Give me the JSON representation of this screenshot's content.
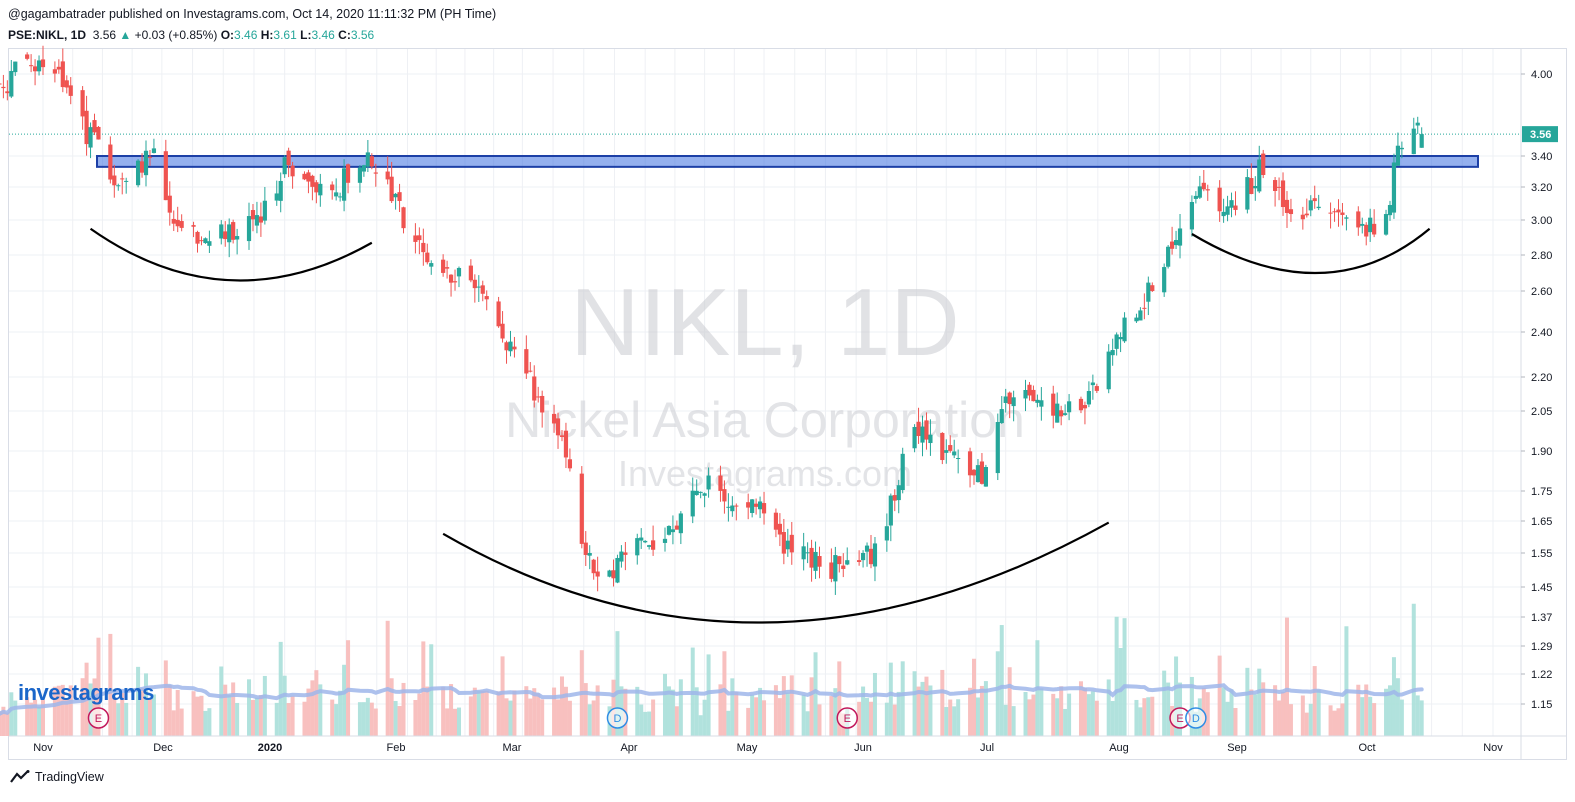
{
  "header": {
    "published": "@gagambatrader published on Investagrams.com, Oct 14, 2020 11:11:32 PM (PH Time)",
    "symbol": "PSE:NIKL, 1D",
    "last": "3.56",
    "change": "+0.03 (+0.85%)",
    "o_label": "O:",
    "o_value": "3.46",
    "h_label": "H:",
    "h_value": "3.61",
    "l_label": "L:",
    "l_value": "3.46",
    "c_label": "C:",
    "c_value": "3.56"
  },
  "watermark": {
    "symbol": "NIKL, 1D",
    "company": "Nickel Asia Corporation",
    "site": "Investagrams.com"
  },
  "logo_text": "investagrams",
  "footer_text": "TradingView",
  "colors": {
    "up": "#26a69a",
    "down": "#ef5350",
    "up_volume": "#a8dfd9",
    "down_volume": "#f7b9b8",
    "volume_ma": "#9fb6ea",
    "zone": "#3d6fe0",
    "price_line": "#26a69a"
  },
  "chart_data": {
    "type": "candlestick",
    "price_axis_ticks": [
      "4.00",
      "3.40",
      "3.20",
      "3.00",
      "2.80",
      "2.60",
      "2.40",
      "2.20",
      "2.05",
      "1.90",
      "1.75",
      "1.65",
      "1.55",
      "1.45",
      "1.37",
      "1.29",
      "1.22",
      "1.15"
    ],
    "price_axis_tick_values": [
      4.0,
      3.4,
      3.2,
      3.0,
      2.8,
      2.6,
      2.4,
      2.2,
      2.05,
      1.9,
      1.75,
      1.65,
      1.55,
      1.45,
      1.37,
      1.29,
      1.22,
      1.15
    ],
    "last_price_label": "3.56",
    "last_price": 3.56,
    "time_axis_labels": [
      "Nov",
      "Dec",
      "2020",
      "Feb",
      "Mar",
      "Apr",
      "May",
      "Jun",
      "Jul",
      "Aug",
      "Sep",
      "Oct",
      "Nov"
    ],
    "resistance_zone": [
      3.33,
      3.4
    ],
    "event_markers": [
      {
        "date": "2019-11-15",
        "label": "E",
        "kind": "earnings"
      },
      {
        "date": "2020-03-25",
        "label": "D",
        "kind": "dividend"
      },
      {
        "date": "2020-05-22",
        "label": "E",
        "kind": "earnings"
      },
      {
        "date": "2020-08-14",
        "label": "E",
        "kind": "earnings"
      },
      {
        "date": "2020-08-18",
        "label": "D",
        "kind": "dividend"
      }
    ],
    "anchors": [
      [
        "2019-10-21",
        3.92
      ],
      [
        "2019-10-28",
        4.05
      ],
      [
        "2019-11-04",
        4.02
      ],
      [
        "2019-11-11",
        3.6
      ],
      [
        "2019-11-15",
        3.5
      ],
      [
        "2019-11-18",
        3.22
      ],
      [
        "2019-11-25",
        3.32
      ],
      [
        "2019-11-29",
        3.42
      ],
      [
        "2019-12-04",
        2.98
      ],
      [
        "2019-12-10",
        2.92
      ],
      [
        "2019-12-20",
        2.92
      ],
      [
        "2019-12-27",
        3.05
      ],
      [
        "2020-01-02",
        3.38
      ],
      [
        "2020-01-08",
        3.15
      ],
      [
        "2020-01-15",
        3.22
      ],
      [
        "2020-01-20",
        3.4
      ],
      [
        "2020-01-27",
        3.2
      ],
      [
        "2020-02-03",
        2.85
      ],
      [
        "2020-02-12",
        2.68
      ],
      [
        "2020-02-20",
        2.62
      ],
      [
        "2020-02-27",
        2.3
      ],
      [
        "2020-03-05",
        2.12
      ],
      [
        "2020-03-10",
        2.0
      ],
      [
        "2020-03-13",
        1.8
      ],
      [
        "2020-03-17",
        1.55
      ],
      [
        "2020-03-23",
        1.47
      ],
      [
        "2020-03-27",
        1.58
      ],
      [
        "2020-04-08",
        1.6
      ],
      [
        "2020-04-16",
        1.78
      ],
      [
        "2020-04-24",
        1.68
      ],
      [
        "2020-04-30",
        1.7
      ],
      [
        "2020-05-08",
        1.55
      ],
      [
        "2020-05-15",
        1.52
      ],
      [
        "2020-05-22",
        1.5
      ],
      [
        "2020-05-29",
        1.55
      ],
      [
        "2020-06-03",
        1.75
      ],
      [
        "2020-06-08",
        2.02
      ],
      [
        "2020-06-17",
        1.88
      ],
      [
        "2020-06-25",
        1.8
      ],
      [
        "2020-06-30",
        2.05
      ],
      [
        "2020-07-06",
        2.15
      ],
      [
        "2020-07-15",
        2.05
      ],
      [
        "2020-07-22",
        2.1
      ],
      [
        "2020-07-29",
        2.35
      ],
      [
        "2020-08-05",
        2.58
      ],
      [
        "2020-08-10",
        2.78
      ],
      [
        "2020-08-14",
        3.0
      ],
      [
        "2020-08-20",
        3.18
      ],
      [
        "2020-08-26",
        3.05
      ],
      [
        "2020-09-03",
        3.3
      ],
      [
        "2020-09-10",
        3.08
      ],
      [
        "2020-09-21",
        3.05
      ],
      [
        "2020-09-30",
        2.95
      ],
      [
        "2020-10-05",
        3.05
      ],
      [
        "2020-10-08",
        3.4
      ],
      [
        "2020-10-12",
        3.68
      ],
      [
        "2020-10-14",
        3.56
      ]
    ],
    "pattern_curves": [
      {
        "name": "left-shoulder",
        "from": [
          "2019-11-13",
          2.95
        ],
        "bottom": [
          "2019-12-18",
          2.66
        ],
        "to": [
          "2020-01-23",
          2.87
        ]
      },
      {
        "name": "head",
        "from": [
          "2020-02-10",
          1.61
        ],
        "bottom": [
          "2020-05-02",
          1.355
        ],
        "to": [
          "2020-07-27",
          1.645
        ]
      },
      {
        "name": "right-shoulder",
        "from": [
          "2020-08-17",
          2.92
        ],
        "bottom": [
          "2020-09-18",
          2.7
        ],
        "to": [
          "2020-10-16",
          2.95
        ]
      }
    ]
  }
}
